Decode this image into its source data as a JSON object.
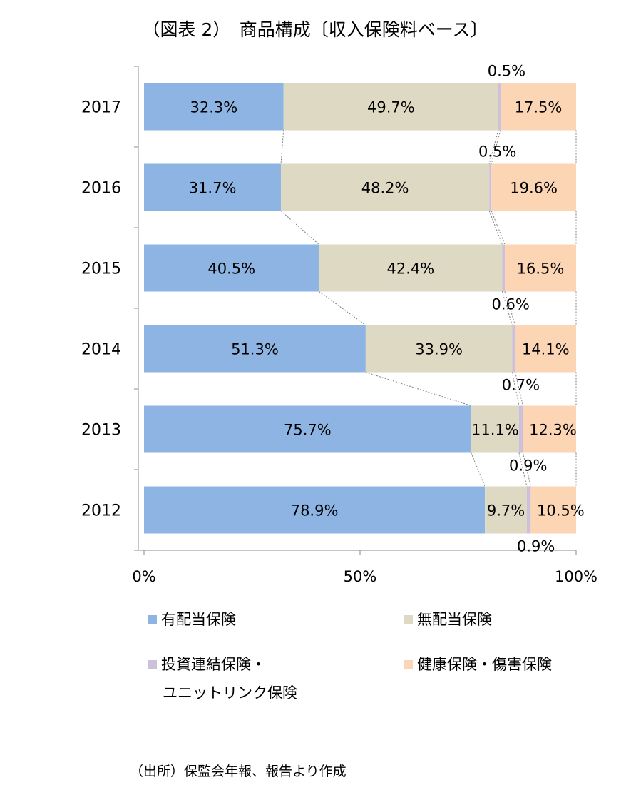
{
  "chart_data": {
    "type": "bar",
    "orientation": "horizontal",
    "stacked": "percent",
    "title": "（図表 2）　商品構成〔収入保険料ベース〕",
    "source": "（出所）保監会年報、報告より作成",
    "categories": [
      "2017",
      "2016",
      "2015",
      "2014",
      "2013",
      "2012"
    ],
    "xlim": [
      0,
      100
    ],
    "xticks": [
      "0%",
      "50%",
      "100%"
    ],
    "grid": false,
    "legend_position": "bottom",
    "connector_lines": true,
    "series": [
      {
        "name": "有配当保険",
        "color": "#8eb4e3",
        "values": [
          32.3,
          31.7,
          40.5,
          51.3,
          75.7,
          78.9
        ],
        "labels": [
          "32.3%",
          "31.7%",
          "40.5%",
          "51.3%",
          "75.7%",
          "78.9%"
        ]
      },
      {
        "name": "無配当保険",
        "color": "#ddd9c3",
        "values": [
          49.7,
          48.2,
          42.4,
          33.9,
          11.1,
          9.7
        ],
        "labels": [
          "49.7%",
          "48.2%",
          "42.4%",
          "33.9%",
          "11.1%",
          "9.7%"
        ]
      },
      {
        "name": "投資連結保険・ユニットリンク保険",
        "legend_lines": [
          "投資連結保険・",
          "ユニットリンク保険"
        ],
        "color": "#ccc0da",
        "values": [
          0.5,
          0.5,
          0.6,
          0.7,
          0.9,
          0.9
        ],
        "labels": [
          "0.5%",
          "0.5%",
          "0.6%",
          "0.7%",
          "0.9%",
          "0.9%"
        ]
      },
      {
        "name": "健康保険・傷害保険",
        "color": "#fcd5b5",
        "values": [
          17.5,
          19.6,
          16.5,
          14.1,
          12.3,
          10.5
        ],
        "labels": [
          "17.5%",
          "19.6%",
          "16.5%",
          "14.1%",
          "12.3%",
          "10.5%"
        ]
      }
    ]
  }
}
